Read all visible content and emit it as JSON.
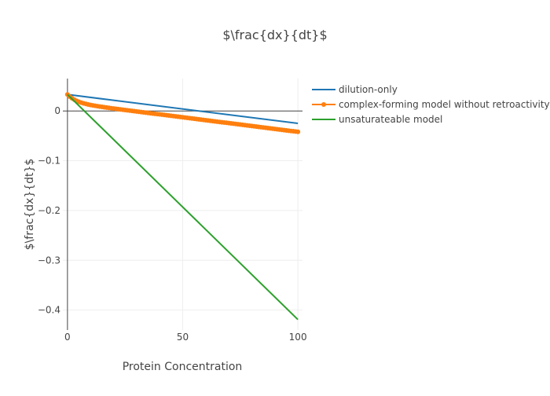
{
  "chart_data": {
    "type": "line",
    "title": "$\\frac{dx}{dt}$",
    "xlabel": "Protein Concentration",
    "ylabel": "$\\frac{dx}{dt}$",
    "xlim": [
      -2,
      102
    ],
    "ylim": [
      -0.44,
      0.065
    ],
    "xticks": [
      0,
      50,
      100
    ],
    "xtick_labels": [
      "0",
      "50",
      "100"
    ],
    "yticks": [
      0,
      -0.1,
      -0.2,
      -0.3,
      -0.4
    ],
    "ytick_labels": [
      "0",
      "−0.1",
      "−0.2",
      "−0.3",
      "−0.4"
    ],
    "grid": true,
    "legend_position": "top-right",
    "series": [
      {
        "name": "dilution-only",
        "color": "#1f77b4",
        "mode": "lines",
        "x": [
          0,
          100
        ],
        "y": [
          0.033,
          -0.025
        ]
      },
      {
        "name": "complex-forming model without retroactivity",
        "color": "#ff7f0e",
        "mode": "lines+markers",
        "x": [
          0,
          1,
          2,
          3,
          4,
          5,
          6,
          7,
          8,
          9,
          10,
          11,
          12,
          13,
          14,
          15,
          16,
          17,
          18,
          19,
          20,
          21,
          22,
          23,
          24,
          25,
          26,
          27,
          28,
          29,
          30,
          31,
          32,
          33,
          34,
          35,
          36,
          37,
          38,
          39,
          40,
          41,
          42,
          43,
          44,
          45,
          46,
          47,
          48,
          49,
          50,
          51,
          52,
          53,
          54,
          55,
          56,
          57,
          58,
          59,
          60,
          61,
          62,
          63,
          64,
          65,
          66,
          67,
          68,
          69,
          70,
          71,
          72,
          73,
          74,
          75,
          76,
          77,
          78,
          79,
          80,
          81,
          82,
          83,
          84,
          85,
          86,
          87,
          88,
          89,
          90,
          91,
          92,
          93,
          94,
          95,
          96,
          97,
          98,
          99,
          100
        ],
        "y": [
          0.033,
          0.0287,
          0.0261,
          0.0241,
          0.0224,
          0.0208,
          0.0194,
          0.018,
          0.0168,
          0.0155,
          0.0144,
          0.0132,
          0.0121,
          0.0111,
          0.01,
          0.009,
          0.008,
          0.007,
          0.006,
          0.005,
          0.004,
          0.0031,
          0.0021,
          0.0012,
          0.0002,
          -0.0007,
          -0.0016,
          -0.0025,
          -0.0034,
          -0.0043,
          -0.0052,
          -0.0061,
          -0.007,
          -0.0079,
          -0.0087,
          -0.0096,
          -0.0105,
          -0.0113,
          -0.0122,
          -0.0131,
          -0.0139,
          -0.0148,
          -0.0156,
          -0.0165,
          -0.0173,
          -0.0181,
          -0.019,
          -0.0198,
          -0.0207,
          -0.0215,
          -0.0223,
          -0.0231,
          -0.024,
          -0.0248,
          -0.0256,
          -0.0264,
          -0.0273,
          -0.0281,
          -0.0289,
          -0.0297,
          -0.0305,
          -0.0313,
          -0.0321,
          -0.033,
          -0.0338,
          -0.0346,
          -0.0354,
          -0.0362,
          -0.037,
          -0.0378,
          -0.0386,
          -0.0394,
          -0.0402,
          -0.041,
          -0.0418,
          -0.0426,
          -0.0434,
          -0.0442,
          -0.045,
          -0.0458,
          -0.0466,
          -0.0474,
          -0.0481,
          -0.0489,
          -0.0497,
          -0.0505,
          -0.0513,
          -0.0521,
          -0.0529,
          -0.0537,
          -0.0545,
          -0.0552,
          -0.056,
          -0.0568,
          -0.0576,
          -0.0584,
          -0.0592,
          -0.0599,
          -0.0607,
          -0.0615,
          -0.042
        ]
      },
      {
        "name": "unsaturateable model",
        "color": "#2ca02c",
        "mode": "lines",
        "x": [
          0,
          100
        ],
        "y": [
          0.033,
          -0.419
        ]
      }
    ]
  }
}
